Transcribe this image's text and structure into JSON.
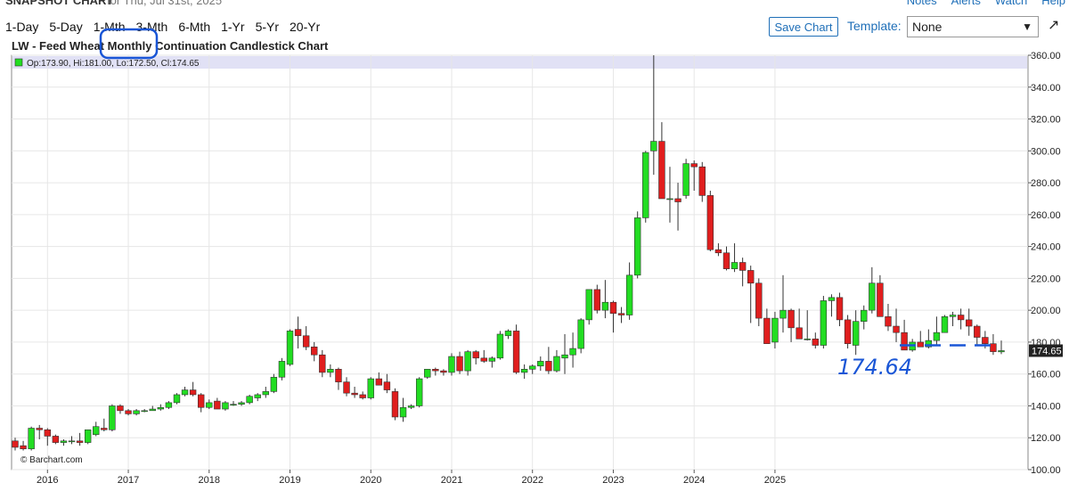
{
  "header": {
    "snapshot_label": "SNAPSHOT CHART",
    "date_label": "for Thu, Jul 31st, 2025",
    "links": [
      "Notes",
      "Alerts",
      "Watch",
      "Help"
    ]
  },
  "ranges": [
    "1-Day",
    "5-Day",
    "1-Mth",
    "3-Mth",
    "6-Mth",
    "1-Yr",
    "5-Yr",
    "20-Yr"
  ],
  "toolbar": {
    "save_label": "Save Chart",
    "template_label": "Template:",
    "template_value": "None"
  },
  "chart_title": {
    "prefix": "LW - Feed Wheat ",
    "period": "Monthly",
    "suffix": " Continuation Candlestick Chart"
  },
  "ohlc_readout": "Op:173.90, Hi:181.00, Lo:172.50, Cl:174.65",
  "watermark": "© Barchart.com",
  "last_price_label": "174.65",
  "annotation": {
    "text": "174.64",
    "color": "#1a56d6"
  },
  "colors": {
    "up": "#22dd22",
    "down": "#e01e1e",
    "annotation": "#1a56d6",
    "highlight_band": "#e1e1f5"
  },
  "chart_data": {
    "type": "candlestick",
    "title": "LW - Feed Wheat Monthly Continuation Candlestick Chart",
    "ylim": [
      100,
      360
    ],
    "y_ticks": [
      "100.00",
      "120.00",
      "140.00",
      "160.00",
      "180.00",
      "200.00",
      "220.00",
      "240.00",
      "260.00",
      "280.00",
      "300.00",
      "320.00",
      "340.00",
      "360.00"
    ],
    "x_ticks": [
      {
        "label": "2016",
        "index": 4
      },
      {
        "label": "2017",
        "index": 14
      },
      {
        "label": "2018",
        "index": 24
      },
      {
        "label": "2019",
        "index": 34
      },
      {
        "label": "2020",
        "index": 44
      },
      {
        "label": "2021",
        "index": 54
      },
      {
        "label": "2022",
        "index": 64
      },
      {
        "label": "2023",
        "index": 74
      },
      {
        "label": "2024",
        "index": 84
      },
      {
        "label": "2025",
        "index": 94
      }
    ],
    "candles": [
      [
        118,
        120,
        112,
        114
      ],
      [
        115,
        118,
        112,
        113
      ],
      [
        113,
        127,
        112,
        126
      ],
      [
        126,
        128,
        119,
        125
      ],
      [
        125,
        126,
        115,
        121
      ],
      [
        121,
        122,
        116,
        117
      ],
      [
        117,
        119,
        115,
        118
      ],
      [
        118,
        121,
        116,
        118
      ],
      [
        118,
        123,
        115,
        117
      ],
      [
        117,
        125,
        116,
        125
      ],
      [
        122,
        130,
        121,
        127
      ],
      [
        126,
        132,
        124,
        125
      ],
      [
        125,
        141,
        124,
        140
      ],
      [
        140,
        141,
        135,
        137
      ],
      [
        137,
        138,
        134,
        135
      ],
      [
        135,
        138,
        134,
        137
      ],
      [
        137,
        138,
        136,
        137
      ],
      [
        137,
        140,
        137,
        138
      ],
      [
        138,
        141,
        137,
        139
      ],
      [
        139,
        143,
        138,
        142
      ],
      [
        142,
        148,
        141,
        147
      ],
      [
        147,
        152,
        146,
        150
      ],
      [
        150,
        155,
        146,
        147
      ],
      [
        147,
        148,
        136,
        139
      ],
      [
        139,
        144,
        138,
        142
      ],
      [
        143,
        145,
        138,
        138
      ],
      [
        138,
        143,
        137,
        142
      ],
      [
        141,
        143,
        140,
        141
      ],
      [
        141,
        143,
        140,
        142
      ],
      [
        142,
        147,
        141,
        146
      ],
      [
        145,
        148,
        143,
        147
      ],
      [
        147,
        152,
        145,
        149
      ],
      [
        149,
        160,
        148,
        158
      ],
      [
        158,
        170,
        156,
        168
      ],
      [
        166,
        188,
        165,
        187
      ],
      [
        188,
        196,
        176,
        184
      ],
      [
        184,
        190,
        175,
        177
      ],
      [
        177,
        180,
        168,
        172
      ],
      [
        172,
        175,
        158,
        161
      ],
      [
        161,
        166,
        158,
        163
      ],
      [
        163,
        164,
        150,
        155
      ],
      [
        155,
        158,
        146,
        148
      ],
      [
        148,
        152,
        145,
        147
      ],
      [
        147,
        149,
        144,
        145
      ],
      [
        145,
        158,
        144,
        157
      ],
      [
        157,
        161,
        153,
        153
      ],
      [
        155,
        160,
        148,
        150
      ],
      [
        149,
        151,
        131,
        133
      ],
      [
        133,
        145,
        130,
        139
      ],
      [
        139,
        141,
        138,
        140
      ],
      [
        140,
        158,
        139,
        157
      ],
      [
        158,
        163,
        157,
        163
      ],
      [
        163,
        164,
        159,
        162
      ],
      [
        162,
        163,
        159,
        161
      ],
      [
        161,
        173,
        159,
        171
      ],
      [
        171,
        174,
        160,
        162
      ],
      [
        162,
        175,
        159,
        174
      ],
      [
        174,
        175,
        166,
        170
      ],
      [
        170,
        175,
        167,
        168
      ],
      [
        168,
        171,
        164,
        170
      ],
      [
        170,
        187,
        169,
        185
      ],
      [
        184,
        188,
        182,
        187
      ],
      [
        187,
        191,
        160,
        161
      ],
      [
        161,
        166,
        157,
        163
      ],
      [
        163,
        166,
        160,
        165
      ],
      [
        165,
        171,
        162,
        168
      ],
      [
        168,
        177,
        160,
        162
      ],
      [
        162,
        175,
        161,
        171
      ],
      [
        170,
        185,
        160,
        172
      ],
      [
        172,
        186,
        164,
        176
      ],
      [
        176,
        195,
        173,
        194
      ],
      [
        194,
        212,
        191,
        213
      ],
      [
        213,
        216,
        198,
        200
      ],
      [
        200,
        219,
        195,
        205
      ],
      [
        205,
        206,
        186,
        198
      ],
      [
        198,
        202,
        192,
        197
      ],
      [
        197,
        230,
        194,
        222
      ],
      [
        222,
        262,
        220,
        258
      ],
      [
        258,
        300,
        255,
        299
      ],
      [
        300,
        360,
        285,
        306
      ],
      [
        306,
        318,
        270,
        270
      ],
      [
        270,
        290,
        255,
        270
      ],
      [
        270,
        280,
        250,
        268
      ],
      [
        272,
        295,
        270,
        292
      ],
      [
        292,
        294,
        275,
        290
      ],
      [
        290,
        293,
        268,
        272
      ],
      [
        272,
        275,
        237,
        238
      ],
      [
        238,
        242,
        234,
        236
      ],
      [
        236,
        240,
        225,
        226
      ],
      [
        226,
        242,
        224,
        230
      ],
      [
        230,
        233,
        215,
        225
      ],
      [
        225,
        228,
        192,
        217
      ],
      [
        217,
        220,
        190,
        195
      ],
      [
        195,
        201,
        180,
        179
      ],
      [
        180,
        199,
        176,
        195
      ],
      [
        195,
        222,
        186,
        200
      ],
      [
        200,
        201,
        180,
        189
      ],
      [
        189,
        201,
        183,
        182
      ],
      [
        182,
        200,
        181,
        182
      ],
      [
        182,
        186,
        176,
        178
      ],
      [
        178,
        209,
        176,
        206
      ],
      [
        206,
        210,
        196,
        208
      ],
      [
        208,
        211,
        190,
        194
      ],
      [
        194,
        197,
        176,
        179
      ],
      [
        178,
        200,
        172,
        193
      ],
      [
        193,
        203,
        188,
        200
      ],
      [
        200,
        227,
        198,
        217
      ],
      [
        217,
        222,
        196,
        196
      ],
      [
        196,
        204,
        187,
        190
      ],
      [
        190,
        201,
        180,
        186
      ],
      [
        186,
        194,
        175,
        175
      ],
      [
        175,
        182,
        174,
        180
      ],
      [
        180,
        187,
        178,
        177
      ],
      [
        177,
        188,
        176,
        181
      ],
      [
        181,
        196,
        178,
        186
      ],
      [
        186,
        197,
        186,
        196
      ],
      [
        196,
        199,
        190,
        197
      ],
      [
        197,
        201,
        188,
        194
      ],
      [
        194,
        201,
        184,
        190
      ],
      [
        190,
        191,
        178,
        183
      ],
      [
        183,
        187,
        176,
        179
      ],
      [
        179,
        185,
        172,
        174
      ],
      [
        173.9,
        181,
        172.5,
        174.65
      ]
    ]
  }
}
